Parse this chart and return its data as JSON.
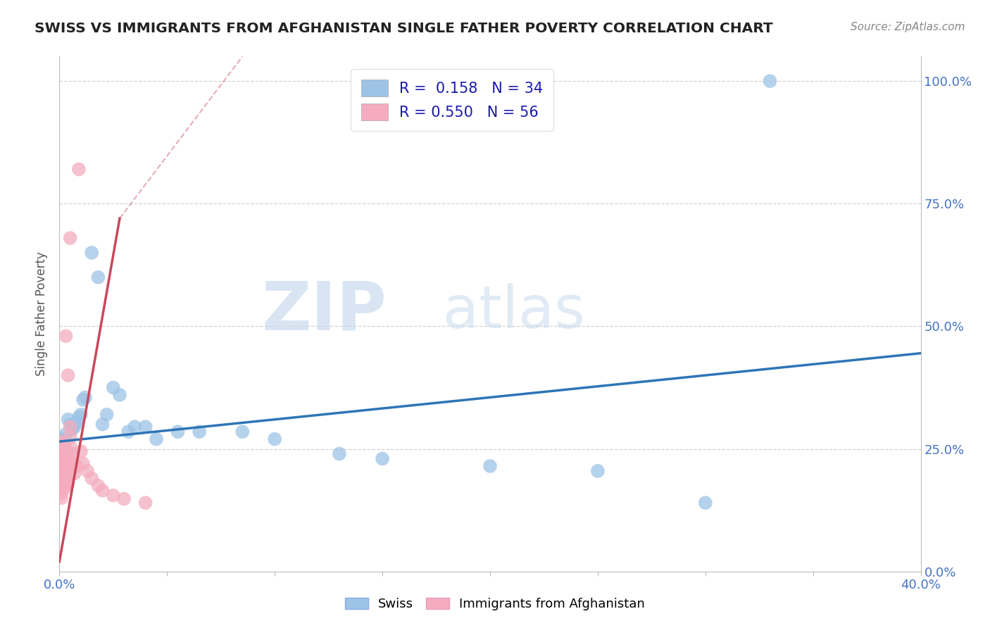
{
  "title": "SWISS VS IMMIGRANTS FROM AFGHANISTAN SINGLE FATHER POVERTY CORRELATION CHART",
  "source": "Source: ZipAtlas.com",
  "ylabel": "Single Father Poverty",
  "legend_r_swiss": "0.158",
  "legend_n_swiss": "34",
  "legend_r_afghan": "0.550",
  "legend_n_afghan": "56",
  "swiss_color": "#9dc3e6",
  "afghan_color": "#f4acbe",
  "swiss_line_color": "#2e75b6",
  "afghan_line_color": "#c9485b",
  "watermark_zip": "ZIP",
  "watermark_atlas": "atlas",
  "background_color": "#ffffff",
  "grid_color": "#c8c8c8",
  "swiss_dots": [
    [
      0.0008,
      0.265
    ],
    [
      0.001,
      0.255
    ],
    [
      0.0015,
      0.27
    ],
    [
      0.002,
      0.26
    ],
    [
      0.003,
      0.28
    ],
    [
      0.004,
      0.31
    ],
    [
      0.005,
      0.3
    ],
    [
      0.006,
      0.29
    ],
    [
      0.007,
      0.295
    ],
    [
      0.008,
      0.305
    ],
    [
      0.009,
      0.315
    ],
    [
      0.01,
      0.32
    ],
    [
      0.011,
      0.35
    ],
    [
      0.012,
      0.355
    ],
    [
      0.015,
      0.65
    ],
    [
      0.018,
      0.6
    ],
    [
      0.02,
      0.3
    ],
    [
      0.022,
      0.32
    ],
    [
      0.025,
      0.375
    ],
    [
      0.028,
      0.36
    ],
    [
      0.032,
      0.285
    ],
    [
      0.035,
      0.295
    ],
    [
      0.04,
      0.295
    ],
    [
      0.045,
      0.27
    ],
    [
      0.055,
      0.285
    ],
    [
      0.065,
      0.285
    ],
    [
      0.085,
      0.285
    ],
    [
      0.1,
      0.27
    ],
    [
      0.13,
      0.24
    ],
    [
      0.15,
      0.23
    ],
    [
      0.2,
      0.215
    ],
    [
      0.25,
      0.205
    ],
    [
      0.3,
      0.14
    ],
    [
      0.33,
      1.0
    ]
  ],
  "afghan_dots": [
    [
      0.0003,
      0.265
    ],
    [
      0.0004,
      0.26
    ],
    [
      0.0005,
      0.255
    ],
    [
      0.0006,
      0.248
    ],
    [
      0.0007,
      0.242
    ],
    [
      0.0008,
      0.235
    ],
    [
      0.0009,
      0.228
    ],
    [
      0.001,
      0.22
    ],
    [
      0.001,
      0.21
    ],
    [
      0.001,
      0.2
    ],
    [
      0.001,
      0.19
    ],
    [
      0.001,
      0.18
    ],
    [
      0.001,
      0.17
    ],
    [
      0.001,
      0.16
    ],
    [
      0.001,
      0.15
    ],
    [
      0.0012,
      0.245
    ],
    [
      0.0013,
      0.238
    ],
    [
      0.0014,
      0.23
    ],
    [
      0.0015,
      0.222
    ],
    [
      0.0016,
      0.215
    ],
    [
      0.0017,
      0.208
    ],
    [
      0.0018,
      0.2
    ],
    [
      0.002,
      0.195
    ],
    [
      0.002,
      0.188
    ],
    [
      0.002,
      0.182
    ],
    [
      0.002,
      0.176
    ],
    [
      0.0025,
      0.17
    ],
    [
      0.003,
      0.25
    ],
    [
      0.003,
      0.23
    ],
    [
      0.003,
      0.21
    ],
    [
      0.003,
      0.19
    ],
    [
      0.003,
      0.175
    ],
    [
      0.004,
      0.235
    ],
    [
      0.004,
      0.215
    ],
    [
      0.004,
      0.195
    ],
    [
      0.004,
      0.18
    ],
    [
      0.005,
      0.295
    ],
    [
      0.005,
      0.275
    ],
    [
      0.005,
      0.255
    ],
    [
      0.006,
      0.24
    ],
    [
      0.006,
      0.22
    ],
    [
      0.007,
      0.2
    ],
    [
      0.008,
      0.215
    ],
    [
      0.009,
      0.82
    ],
    [
      0.01,
      0.245
    ],
    [
      0.011,
      0.22
    ],
    [
      0.013,
      0.205
    ],
    [
      0.015,
      0.19
    ],
    [
      0.018,
      0.175
    ],
    [
      0.02,
      0.165
    ],
    [
      0.025,
      0.155
    ],
    [
      0.03,
      0.148
    ],
    [
      0.04,
      0.14
    ],
    [
      0.005,
      0.68
    ],
    [
      0.003,
      0.48
    ],
    [
      0.004,
      0.4
    ]
  ],
  "xlim": [
    0.0,
    0.4
  ],
  "ylim": [
    0.0,
    1.05
  ],
  "swiss_line": [
    [
      0.0,
      0.265
    ],
    [
      0.4,
      0.445
    ]
  ],
  "afghan_line_solid": [
    [
      0.0,
      0.02
    ],
    [
      0.028,
      0.72
    ]
  ],
  "afghan_line_dash": [
    [
      0.028,
      0.72
    ],
    [
      0.085,
      1.05
    ]
  ]
}
